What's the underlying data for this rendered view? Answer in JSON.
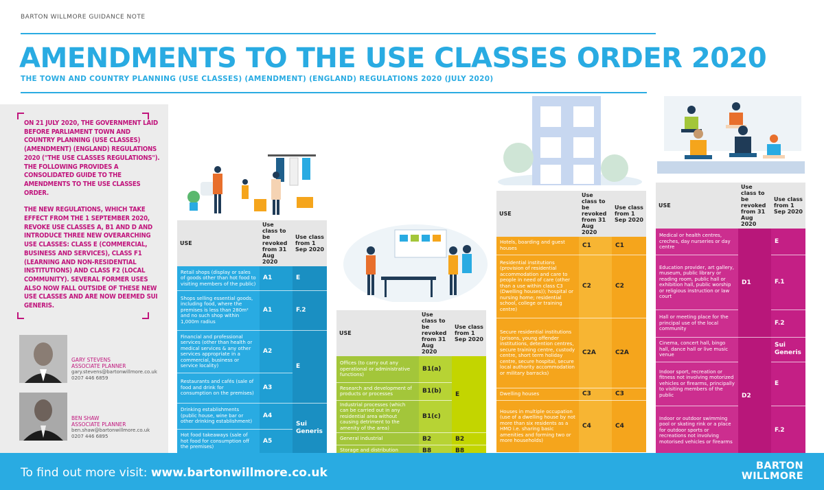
{
  "header": {
    "guidance": "BARTON WILLMORE GUIDANCE NOTE",
    "title": "AMENDMENTS TO THE USE CLASSES ORDER 2020",
    "subtitle": "THE TOWN AND COUNTRY PLANNING (USE CLASSES) (AMENDMENT) (ENGLAND) REGULATIONS 2020 (JULY 2020)"
  },
  "intro": {
    "p1": "ON 21 JULY 2020, THE GOVERNMENT LAID BEFORE PARLIAMENT TOWN AND COUNTRY PLANNING (USE CLASSES) (AMENDMENT) (ENGLAND) REGULATIONS 2020 (\"THE USE CLASSES REGULATIONS\"). THE FOLLOWING PROVIDES A CONSOLIDATED GUIDE TO THE AMENDMENTS TO THE USE CLASSES ORDER.",
    "p2": "THE NEW REGULATIONS, WHICH TAKE EFFECT FROM THE 1 SEPTEMBER 2020, REVOKE USE CLASSES A, B1 AND D AND INTRODUCE THREE NEW OVERARCHING USE CLASSES: CLASS E (COMMERCIAL, BUSINESS AND SERVICES), CLASS F1 (LEARNING AND NON-RESIDENTIAL INSTITUTIONS) AND CLASS F2 (LOCAL COMMUNITY). SEVERAL FORMER USES ALSO NOW FALL OUTSIDE OF THESE NEW USE CLASSES AND ARE NOW DEEMED SUI GENERIS."
  },
  "contacts": [
    {
      "name": "GARY STEVENS",
      "role": "ASSOCIATE PLANNER",
      "email": "gary.stevens@bartonwillmore.co.uk",
      "phone": "0207 446 6859"
    },
    {
      "name": "BEN SHAW",
      "role": "ASSOCIATE PLANNER",
      "email": "ben.shaw@bartonwillmore.co.uk",
      "phone": "0207 446 6895"
    }
  ],
  "table_headers": {
    "use": "USE",
    "revoked": "Use class to be revoked from 31 Aug 2020",
    "from": "Use class from 1 Sep 2020"
  },
  "tableA": [
    {
      "desc": "Retail shops (display or sales of goods other than hot food to visiting members of the public)",
      "old": "A1"
    },
    {
      "desc": "Shops selling essential goods, including food, where the premises is less than 280m² and no such shop within 1,000m radius",
      "old": "A1"
    },
    {
      "desc": "Financial and professional services (other than health or medical services & any other services appropriate in a commercial, business or service locality)",
      "old": "A2"
    },
    {
      "desc": "Restaurants and cafés (sale of food and drink for consumption on the premises)",
      "old": "A3"
    },
    {
      "desc": "Drinking establishments (public house, wine bar or other drinking establishment)",
      "old": "A4"
    },
    {
      "desc": "Hot food takeaways (sale of hot food for consumption off the premises)",
      "old": "A5"
    }
  ],
  "tableA_new": [
    "E",
    "F.2",
    "E",
    "Sui Generis"
  ],
  "tableB": [
    {
      "desc": "Offices (to carry out any operational or administrative functions)",
      "old": "B1(a)"
    },
    {
      "desc": "Research and development of products or processes",
      "old": "B1(b)"
    },
    {
      "desc": "Industrial processes (which can be carried out in any residential area without causing detriment to the amenity of the area)",
      "old": "B1(c)"
    },
    {
      "desc": "General industrial",
      "old": "B2",
      "new": "B2"
    },
    {
      "desc": "Storage and distribution",
      "old": "B8",
      "new": "B8"
    }
  ],
  "tableB_new": "E",
  "tableC": [
    {
      "desc": "Hotels, boarding and guest houses",
      "old": "C1",
      "new": "C1"
    },
    {
      "desc": "Residential institutions (provision of residential accommodation and care to people in need of care (other than a use within class C3 (Dwelling houses)); hospital or nursing home; residential school, college or training centre)",
      "old": "C2",
      "new": "C2"
    },
    {
      "desc": "Secure residential institutions (prisons, young offender institutions, detention centres, secure training centre, custody centre, short term holiday centre, secure hospital, secure local authority accommodation or military barracks)",
      "old": "C2A",
      "new": "C2A"
    },
    {
      "desc": "Dwelling houses",
      "old": "C3",
      "new": "C3"
    },
    {
      "desc": "Houses in multiple occupation (use of a dwelling house by not more than six residents as a HMO i.e. sharing basic amenities and forming two or more households)",
      "old": "C4",
      "new": "C4"
    }
  ],
  "tableD": [
    {
      "desc": "Medical or health centres, creches, day nurseries or day centre",
      "new": "E"
    },
    {
      "desc": "Education provider, art gallery, museum, public library or reading room, public hall or exhibition hall, public worship or religious instruction or law court",
      "new": "F.1"
    },
    {
      "desc": "Hall or meeting place for the principal use of the local community",
      "new": "F.2"
    },
    {
      "desc": "Cinema, concert hall, bingo hall, dance hall or live music venue",
      "new": "Sui Generis"
    },
    {
      "desc": "Indoor sport, recreation or fitness not involving motorized vehicles or firearms, principally to visiting members of the public",
      "new": "E"
    },
    {
      "desc": "Indoor or outdoor swimming pool or skating rink or a place for outdoor sports or recreations not involving motorised vehicles or firearms",
      "new": "F.2"
    }
  ],
  "tableD_old": [
    "D1",
    "D2"
  ],
  "footer": {
    "prefix": "To find out more visit: ",
    "url": "www.bartonwillmore.co.uk",
    "logo1": "BARTON",
    "logo2": "WILLMORE"
  },
  "colors": {
    "blue": "#29abe2",
    "magenta": "#c0147c",
    "green": "#a3c63a",
    "orange": "#f5a51c",
    "pink": "#cc2e8f"
  }
}
